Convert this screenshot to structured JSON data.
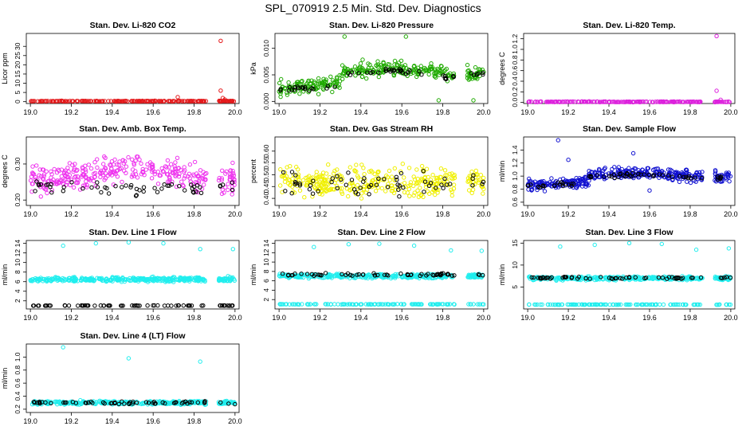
{
  "figure_title": "SPL_070919  2.5 Min. Std. Dev. Diagnostics",
  "colors": {
    "co2": "#e41a1c",
    "pressure": "#1faa00",
    "temp": "#dd22dd",
    "box": "#ee33ee",
    "rh": "#f0f000",
    "flow": "#1010d0",
    "line": "#20eeee",
    "black": "#000000"
  },
  "chart_data": [
    {
      "id": "co2",
      "type": "scatter",
      "title": "Stan. Dev. Li-820 CO2",
      "xlabel": "",
      "ylabel": "Licor ppm",
      "xlim": [
        18.98,
        20.02
      ],
      "ylim": [
        -1,
        37
      ],
      "xticks": [
        "19.0",
        "19.2",
        "19.4",
        "19.6",
        "19.8",
        "20.0"
      ],
      "yticks": [
        0,
        5,
        10,
        15,
        20,
        25,
        30
      ],
      "series": [
        {
          "name": "base",
          "color_key": "co2",
          "mode": "flat",
          "level": 0.3,
          "spread": 0.25,
          "n": 210,
          "seed": 11
        },
        {
          "name": "outliers",
          "color_key": "co2",
          "x": [
            19.72,
            19.93,
            19.93,
            19.94,
            19.95
          ],
          "y": [
            2.5,
            33,
            6,
            2.0,
            1.2
          ]
        }
      ]
    },
    {
      "id": "pressure",
      "type": "scatter",
      "title": "Stan. Dev. Li-820 Pressure",
      "xlabel": "",
      "ylabel": "kPa",
      "xlim": [
        18.98,
        20.02
      ],
      "ylim": [
        -0.0004,
        0.0128
      ],
      "xticks": [
        "19.0",
        "19.2",
        "19.4",
        "19.6",
        "19.8",
        "20.0"
      ],
      "yticks": [
        0,
        0.005,
        0.01
      ],
      "ytick_labels": [
        "0.000",
        "0.005",
        "0.010"
      ],
      "series": [
        {
          "name": "main",
          "color_key": "pressure",
          "mode": "rise",
          "start": 0.0025,
          "end": 0.0055,
          "peak": 0.0063,
          "spread": 0.0022,
          "n": 330,
          "seed": 21
        },
        {
          "name": "reference",
          "color_key": "black",
          "mode": "rise",
          "start": 0.002,
          "end": 0.005,
          "peak": 0.0058,
          "spread": 0.0008,
          "n": 60,
          "seed": 22
        },
        {
          "name": "extremes",
          "color_key": "pressure",
          "x": [
            19.32,
            19.62,
            19.78,
            19.95
          ],
          "y": [
            0.0122,
            0.0122,
            0.0002,
            0.0002
          ]
        }
      ]
    },
    {
      "id": "temp",
      "type": "scatter",
      "title": "Stan. Dev. Li-820 Temp.",
      "xlabel": "",
      "ylabel": "degrees C",
      "xlim": [
        18.98,
        20.02
      ],
      "ylim": [
        -0.02,
        1.3
      ],
      "xticks": [
        "19.0",
        "19.2",
        "19.4",
        "19.6",
        "19.8",
        "20.0"
      ],
      "yticks": [
        0,
        0.2,
        0.4,
        0.6,
        0.8,
        1.0,
        1.2
      ],
      "ytick_labels": [
        "0.0",
        "0.2",
        "0.4",
        "0.6",
        "0.8",
        "1.0",
        "1.2"
      ],
      "series": [
        {
          "name": "base",
          "color_key": "temp",
          "mode": "flat",
          "level": 0.012,
          "spread": 0.01,
          "n": 210,
          "seed": 31
        },
        {
          "name": "outliers",
          "color_key": "temp",
          "x": [
            19.93,
            19.93,
            19.95
          ],
          "y": [
            1.25,
            0.22,
            0.05
          ]
        }
      ]
    },
    {
      "id": "box",
      "type": "scatter",
      "title": "Stan. Dev. Amb. Box Temp.",
      "xlabel": "",
      "ylabel": "degrees C",
      "xlim": [
        18.98,
        20.02
      ],
      "ylim": [
        0.185,
        0.375
      ],
      "xticks": [
        "19.0",
        "19.2",
        "19.4",
        "19.6",
        "19.8",
        "20.0"
      ],
      "yticks": [
        0.2,
        0.3
      ],
      "ytick_labels": [
        "0.20",
        "0.30"
      ],
      "series": [
        {
          "name": "main",
          "color_key": "box",
          "mode": "hump",
          "level": 0.255,
          "peak": 0.29,
          "spread": 0.055,
          "n": 330,
          "seed": 41
        },
        {
          "name": "reference",
          "color_key": "black",
          "mode": "flat",
          "level": 0.235,
          "spread": 0.03,
          "n": 55,
          "seed": 42
        }
      ]
    },
    {
      "id": "rh",
      "type": "scatter",
      "title": "Stan. Dev. Gas Stream RH",
      "xlabel": "",
      "ylabel": "percent",
      "xlim": [
        18.98,
        20.02
      ],
      "ylim": [
        0.37,
        0.66
      ],
      "xticks": [
        "19.0",
        "19.2",
        "19.4",
        "19.6",
        "19.8",
        "20.0"
      ],
      "yticks": [
        0.4,
        0.45,
        0.5,
        0.55,
        0.6
      ],
      "ytick_labels": [
        "0.40",
        "0.45",
        "0.50",
        "0.55",
        "0.60"
      ],
      "series": [
        {
          "name": "main",
          "color_key": "rh",
          "mode": "flat",
          "level": 0.47,
          "spread": 0.09,
          "n": 340,
          "seed": 51
        },
        {
          "name": "reference",
          "color_key": "black",
          "mode": "flat",
          "level": 0.47,
          "spread": 0.08,
          "n": 60,
          "seed": 52
        }
      ]
    },
    {
      "id": "flow",
      "type": "scatter",
      "title": "Stan. Dev. Sample Flow",
      "xlabel": "",
      "ylabel": "ml/min",
      "xlim": [
        18.98,
        20.02
      ],
      "ylim": [
        0.55,
        1.6
      ],
      "xticks": [
        "19.0",
        "19.2",
        "19.4",
        "19.6",
        "19.8",
        "20.0"
      ],
      "yticks": [
        0.6,
        0.8,
        1.0,
        1.2,
        1.4
      ],
      "ytick_labels": [
        "0.6",
        "0.8",
        "1.0",
        "1.2",
        "1.4"
      ],
      "series": [
        {
          "name": "main",
          "color_key": "flow",
          "mode": "rise",
          "start": 0.86,
          "end": 1.0,
          "peak": 1.05,
          "spread": 0.13,
          "n": 380,
          "seed": 61
        },
        {
          "name": "reference",
          "color_key": "black",
          "mode": "rise",
          "start": 0.85,
          "end": 0.98,
          "peak": 1.02,
          "spread": 0.05,
          "n": 65,
          "seed": 62
        },
        {
          "name": "extremes",
          "color_key": "flow",
          "x": [
            19.15,
            19.52,
            19.6,
            19.2
          ],
          "y": [
            1.55,
            1.35,
            0.78,
            1.25
          ]
        }
      ]
    },
    {
      "id": "line1",
      "type": "scatter",
      "title": "Stan. Dev. Line 1 Flow",
      "xlabel": "",
      "ylabel": "ml/min",
      "xlim": [
        18.98,
        20.02
      ],
      "ylim": [
        0.3,
        14.6
      ],
      "xticks": [
        "19.0",
        "19.2",
        "19.4",
        "19.6",
        "19.8",
        "20.0"
      ],
      "yticks": [
        2,
        4,
        6,
        8,
        10,
        12,
        14
      ],
      "series": [
        {
          "name": "main",
          "color_key": "line",
          "mode": "flat",
          "level": 6.5,
          "spread": 0.7,
          "n": 360,
          "seed": 71
        },
        {
          "name": "reference",
          "color_key": "black",
          "mode": "flat",
          "level": 1.0,
          "spread": 0.05,
          "n": 70,
          "seed": 72
        },
        {
          "name": "outliers",
          "color_key": "line",
          "x": [
            19.16,
            19.32,
            19.48,
            19.65,
            19.83,
            19.99
          ],
          "y": [
            13.5,
            14.0,
            14.2,
            14.0,
            12.8,
            12.8
          ]
        }
      ]
    },
    {
      "id": "line2",
      "type": "scatter",
      "title": "Stan. Dev. Line 2 Flow",
      "xlabel": "",
      "ylabel": "ml/min",
      "xlim": [
        18.98,
        20.02
      ],
      "ylim": [
        0.0,
        14.6
      ],
      "xticks": [
        "19.0",
        "19.2",
        "19.4",
        "19.6",
        "19.8",
        "20.0"
      ],
      "yticks": [
        2,
        4,
        6,
        8,
        10,
        12,
        14
      ],
      "series": [
        {
          "name": "main",
          "color_key": "line",
          "mode": "flat",
          "level": 7.0,
          "spread": 0.6,
          "n": 330,
          "seed": 81
        },
        {
          "name": "low",
          "color_key": "line",
          "mode": "flat",
          "level": 1.0,
          "spread": 0.06,
          "n": 120,
          "seed": 83
        },
        {
          "name": "reference",
          "color_key": "black",
          "mode": "flat",
          "level": 7.3,
          "spread": 0.4,
          "n": 60,
          "seed": 82
        },
        {
          "name": "outliers",
          "color_key": "line",
          "x": [
            19.17,
            19.34,
            19.49,
            19.66,
            19.84,
            19.99
          ],
          "y": [
            13.2,
            13.8,
            13.9,
            13.5,
            12.5,
            12.4
          ]
        }
      ]
    },
    {
      "id": "line3",
      "type": "scatter",
      "title": "Stan. Dev. Line 3 Flow",
      "xlabel": "",
      "ylabel": "ml/min",
      "xlim": [
        18.98,
        20.02
      ],
      "ylim": [
        0.0,
        15.6
      ],
      "xticks": [
        "19.0",
        "19.2",
        "19.4",
        "19.6",
        "19.8",
        "20.0"
      ],
      "yticks": [
        5,
        10,
        15
      ],
      "series": [
        {
          "name": "main",
          "color_key": "line",
          "mode": "flat",
          "level": 7.0,
          "spread": 0.6,
          "n": 330,
          "seed": 91
        },
        {
          "name": "low",
          "color_key": "line",
          "mode": "flat",
          "level": 1.0,
          "spread": 0.06,
          "n": 120,
          "seed": 93
        },
        {
          "name": "reference",
          "color_key": "black",
          "mode": "flat",
          "level": 7.1,
          "spread": 0.35,
          "n": 60,
          "seed": 92
        },
        {
          "name": "outliers",
          "color_key": "line",
          "x": [
            19.16,
            19.33,
            19.5,
            19.66,
            19.83,
            19.99
          ],
          "y": [
            14.2,
            14.6,
            15.0,
            14.8,
            13.5,
            13.8
          ]
        }
      ]
    },
    {
      "id": "line4",
      "type": "scatter",
      "title": "Stan. Dev. Line 4 (LT) Flow",
      "xlabel": "",
      "ylabel": "ml/min",
      "xlim": [
        18.98,
        20.02
      ],
      "ylim": [
        0.15,
        1.2
      ],
      "xticks": [
        "19.0",
        "19.2",
        "19.4",
        "19.6",
        "19.8",
        "20.0"
      ],
      "yticks": [
        0.2,
        0.4,
        0.6,
        0.8,
        1.0
      ],
      "ytick_labels": [
        "0.2",
        "0.4",
        "0.6",
        "0.8",
        "1.0"
      ],
      "series": [
        {
          "name": "main",
          "color_key": "line",
          "mode": "flat",
          "level": 0.3,
          "spread": 0.04,
          "n": 330,
          "seed": 101
        },
        {
          "name": "reference",
          "color_key": "black",
          "mode": "flat",
          "level": 0.3,
          "spread": 0.03,
          "n": 60,
          "seed": 102
        },
        {
          "name": "outliers",
          "color_key": "line",
          "x": [
            19.16,
            19.48,
            19.83
          ],
          "y": [
            1.15,
            0.98,
            0.93
          ]
        }
      ]
    }
  ]
}
